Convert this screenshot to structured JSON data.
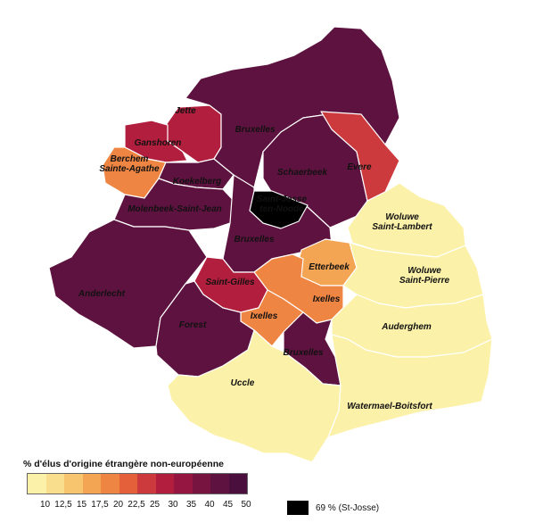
{
  "legend": {
    "title": "% d'élus d'origine étrangère non-européenne",
    "ticks": [
      "10",
      "12,5",
      "15",
      "17,5",
      "20",
      "22,5",
      "25",
      "30",
      "35",
      "40",
      "45",
      "50"
    ],
    "colors": [
      "#fbf1a9",
      "#f8de8d",
      "#f6c56d",
      "#f3a553",
      "#ef8542",
      "#e3603b",
      "#cc3a3e",
      "#b21e3d",
      "#951741",
      "#781440",
      "#5e123f",
      "#4a0f3c"
    ],
    "special": {
      "label": "69 % (St-Josse)",
      "color": "#000000"
    }
  },
  "communes": [
    {
      "id": "jette",
      "label": "Jette",
      "color": "#b21e3d"
    },
    {
      "id": "ganshoren",
      "label": "Ganshoren",
      "color": "#b21e3d"
    },
    {
      "id": "berchem",
      "label": "Berchem\nSainte-Agathe",
      "color": "#ef8542"
    },
    {
      "id": "koekelberg",
      "label": "Koekelberg",
      "color": "#5e123f"
    },
    {
      "id": "molenbeek",
      "label": "Molenbeek-Saint-Jean",
      "color": "#5e123f"
    },
    {
      "id": "anderlecht",
      "label": "Anderlecht",
      "color": "#5e123f"
    },
    {
      "id": "bruxelles_nord",
      "label": "Bruxelles",
      "color": "#5e123f"
    },
    {
      "id": "bruxelles_centre",
      "label": "Bruxelles",
      "color": "#5e123f"
    },
    {
      "id": "schaerbeek",
      "label": "Schaerbeek",
      "color": "#5e123f"
    },
    {
      "id": "evere",
      "label": "Evere",
      "color": "#cc3a3e"
    },
    {
      "id": "stjosse",
      "label": "Saint-Josse\nten-Noode",
      "color": "#000000"
    },
    {
      "id": "woluwe_sl",
      "label": "Woluwe\nSaint-Lambert",
      "color": "#fbf1a9"
    },
    {
      "id": "etterbeek",
      "label": "Etterbeek",
      "color": "#f3a553"
    },
    {
      "id": "ixelles_n",
      "label": "Ixelles",
      "color": "#ef8542"
    },
    {
      "id": "saint_gilles",
      "label": "Saint-Gilles",
      "color": "#b21e3d"
    },
    {
      "id": "ixelles_s",
      "label": "Ixelles",
      "color": "#ef8542"
    },
    {
      "id": "forest",
      "label": "Forest",
      "color": "#5e123f"
    },
    {
      "id": "bruxelles_sud",
      "label": "Bruxelles",
      "color": "#5e123f"
    },
    {
      "id": "woluwe_sp",
      "label": "Woluwe\nSaint-Pierre",
      "color": "#fbf1a9"
    },
    {
      "id": "auderghem",
      "label": "Auderghem",
      "color": "#fbf1a9"
    },
    {
      "id": "uccle",
      "label": "Uccle",
      "color": "#fbf1a9"
    },
    {
      "id": "watermael",
      "label": "Watermael-Boitsfort",
      "color": "#fbf1a9"
    }
  ]
}
